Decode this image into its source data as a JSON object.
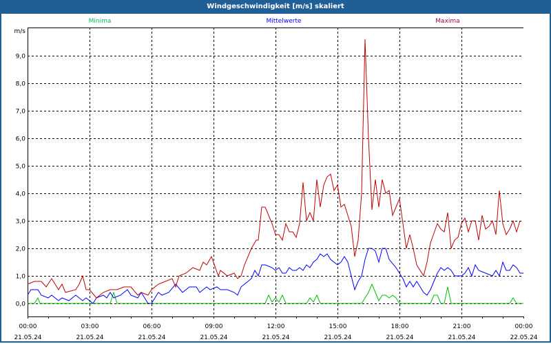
{
  "window": {
    "title": "Windgeschwindigkeit [m/s] skaliert"
  },
  "chart_data": {
    "type": "line",
    "title": "Windgeschwindigkeit [m/s] skaliert",
    "ylabel": "m/s",
    "xlabel": "",
    "x_unit": "minutes since 21.05.24 00:00",
    "xlim": [
      0,
      1440
    ],
    "ylim": [
      -0.475,
      10.025
    ],
    "grid": true,
    "legend_placement": "top",
    "y_ticks": [
      0,
      1,
      2,
      3,
      4,
      5,
      6,
      7,
      8,
      9
    ],
    "y_tick_labels": [
      "0,0",
      "1,0",
      "2,0",
      "3,0",
      "4,0",
      "5,0",
      "6,0",
      "7,0",
      "8,0",
      "9,0"
    ],
    "x_ticks": [
      0,
      180,
      360,
      540,
      720,
      900,
      1080,
      1260,
      1440
    ],
    "x_tick_labels": [
      {
        "time": "00:00",
        "date": "21.05.24"
      },
      {
        "time": "03:00",
        "date": "21.05.24"
      },
      {
        "time": "06:00",
        "date": "21.05.24"
      },
      {
        "time": "09:00",
        "date": "21.05.24"
      },
      {
        "time": "12:00",
        "date": "21.05.24"
      },
      {
        "time": "15:00",
        "date": "21.05.24"
      },
      {
        "time": "18:00",
        "date": "21.05.24"
      },
      {
        "time": "21:00",
        "date": "21.05.24"
      },
      {
        "time": "00:00",
        "date": "22.05.24"
      }
    ],
    "series": [
      {
        "name": "Minima",
        "color": "#00c000",
        "legend_color": "#00c060",
        "points": [
          [
            0,
            0
          ],
          [
            20,
            0
          ],
          [
            30,
            0.2
          ],
          [
            36,
            0
          ],
          [
            240,
            0
          ],
          [
            250,
            0.4
          ],
          [
            260,
            0
          ],
          [
            690,
            0
          ],
          [
            700,
            0.3
          ],
          [
            710,
            0.05
          ],
          [
            720,
            0.2
          ],
          [
            730,
            0.05
          ],
          [
            740,
            0.3
          ],
          [
            750,
            0
          ],
          [
            810,
            0
          ],
          [
            820,
            0.2
          ],
          [
            830,
            0.05
          ],
          [
            840,
            0.3
          ],
          [
            850,
            0
          ],
          [
            970,
            0
          ],
          [
            990,
            0.4
          ],
          [
            1000,
            0.7
          ],
          [
            1010,
            0.4
          ],
          [
            1020,
            0.1
          ],
          [
            1030,
            0.3
          ],
          [
            1040,
            0.3
          ],
          [
            1050,
            0.2
          ],
          [
            1060,
            0.3
          ],
          [
            1070,
            0.2
          ],
          [
            1080,
            0
          ],
          [
            1170,
            0
          ],
          [
            1180,
            0.3
          ],
          [
            1190,
            0.3
          ],
          [
            1200,
            0
          ],
          [
            1210,
            0
          ],
          [
            1220,
            0.6
          ],
          [
            1230,
            0
          ],
          [
            1400,
            0
          ],
          [
            1410,
            0.2
          ],
          [
            1420,
            0
          ],
          [
            1440,
            0
          ]
        ]
      },
      {
        "name": "Mittelwerte",
        "color": "#0000ff",
        "legend_color": "#0000ff",
        "points": [
          [
            0,
            0.3
          ],
          [
            10,
            0.5
          ],
          [
            30,
            0.5
          ],
          [
            40,
            0.3
          ],
          [
            60,
            0.2
          ],
          [
            70,
            0.3
          ],
          [
            90,
            0.1
          ],
          [
            100,
            0.2
          ],
          [
            120,
            0.1
          ],
          [
            130,
            0.2
          ],
          [
            140,
            0.3
          ],
          [
            150,
            0.2
          ],
          [
            160,
            0.1
          ],
          [
            170,
            0.2
          ],
          [
            180,
            0.1
          ],
          [
            190,
            0
          ],
          [
            200,
            0.2
          ],
          [
            220,
            0.3
          ],
          [
            230,
            0.2
          ],
          [
            240,
            0.4
          ],
          [
            250,
            0.2
          ],
          [
            270,
            0.3
          ],
          [
            290,
            0.5
          ],
          [
            300,
            0.3
          ],
          [
            320,
            0.2
          ],
          [
            330,
            0.4
          ],
          [
            340,
            0.2
          ],
          [
            350,
            0
          ],
          [
            360,
            0
          ],
          [
            380,
            0.4
          ],
          [
            390,
            0.3
          ],
          [
            410,
            0.4
          ],
          [
            430,
            0.7
          ],
          [
            450,
            0.4
          ],
          [
            470,
            0.6
          ],
          [
            490,
            0.6
          ],
          [
            500,
            0.4
          ],
          [
            520,
            0.6
          ],
          [
            530,
            0.5
          ],
          [
            550,
            0.6
          ],
          [
            560,
            0.5
          ],
          [
            580,
            0.5
          ],
          [
            600,
            0.4
          ],
          [
            610,
            0.3
          ],
          [
            620,
            0.6
          ],
          [
            640,
            0.8
          ],
          [
            650,
            0.9
          ],
          [
            660,
            1.2
          ],
          [
            670,
            1.0
          ],
          [
            680,
            1.4
          ],
          [
            690,
            1.4
          ],
          [
            710,
            1.3
          ],
          [
            720,
            1.2
          ],
          [
            730,
            1.3
          ],
          [
            740,
            1.1
          ],
          [
            750,
            1.1
          ],
          [
            760,
            1.3
          ],
          [
            770,
            1.2
          ],
          [
            780,
            1.2
          ],
          [
            790,
            1.3
          ],
          [
            800,
            1.2
          ],
          [
            810,
            1.4
          ],
          [
            820,
            1.3
          ],
          [
            830,
            1.5
          ],
          [
            840,
            1.6
          ],
          [
            850,
            1.8
          ],
          [
            860,
            1.7
          ],
          [
            870,
            1.8
          ],
          [
            880,
            1.6
          ],
          [
            900,
            1.4
          ],
          [
            910,
            1.5
          ],
          [
            920,
            1.7
          ],
          [
            930,
            1.5
          ],
          [
            940,
            1.0
          ],
          [
            950,
            0.5
          ],
          [
            960,
            0.8
          ],
          [
            970,
            1.0
          ],
          [
            980,
            1.6
          ],
          [
            990,
            2.0
          ],
          [
            1000,
            2.0
          ],
          [
            1010,
            1.9
          ],
          [
            1020,
            1.5
          ],
          [
            1030,
            2.0
          ],
          [
            1040,
            2.0
          ],
          [
            1050,
            1.6
          ],
          [
            1070,
            1.3
          ],
          [
            1080,
            1.1
          ],
          [
            1090,
            0.9
          ],
          [
            1100,
            0.6
          ],
          [
            1110,
            0.8
          ],
          [
            1120,
            0.6
          ],
          [
            1130,
            0.8
          ],
          [
            1140,
            0.6
          ],
          [
            1150,
            0.4
          ],
          [
            1160,
            0.3
          ],
          [
            1170,
            0.5
          ],
          [
            1180,
            0.8
          ],
          [
            1190,
            1.1
          ],
          [
            1200,
            1.3
          ],
          [
            1210,
            1.2
          ],
          [
            1220,
            1.3
          ],
          [
            1230,
            1.2
          ],
          [
            1240,
            1.0
          ],
          [
            1260,
            1.0
          ],
          [
            1270,
            1.1
          ],
          [
            1280,
            1.3
          ],
          [
            1290,
            1.0
          ],
          [
            1300,
            1.4
          ],
          [
            1310,
            1.2
          ],
          [
            1330,
            1.1
          ],
          [
            1350,
            1.0
          ],
          [
            1360,
            1.2
          ],
          [
            1370,
            1.0
          ],
          [
            1380,
            1.5
          ],
          [
            1390,
            1.2
          ],
          [
            1400,
            1.2
          ],
          [
            1410,
            1.4
          ],
          [
            1420,
            1.3
          ],
          [
            1430,
            1.1
          ],
          [
            1440,
            1.1
          ]
        ]
      },
      {
        "name": "Maxima",
        "color": "#c00000",
        "legend_color": "#a00050",
        "points": [
          [
            0,
            0.7
          ],
          [
            20,
            0.8
          ],
          [
            40,
            0.8
          ],
          [
            54,
            0.6
          ],
          [
            70,
            0.9
          ],
          [
            90,
            0.5
          ],
          [
            100,
            0.7
          ],
          [
            110,
            0.4
          ],
          [
            140,
            0.5
          ],
          [
            150,
            0.7
          ],
          [
            160,
            1.0
          ],
          [
            170,
            0.5
          ],
          [
            180,
            0.5
          ],
          [
            200,
            0.2
          ],
          [
            220,
            0.4
          ],
          [
            240,
            0.5
          ],
          [
            260,
            0.5
          ],
          [
            280,
            0.6
          ],
          [
            300,
            0.6
          ],
          [
            320,
            0.3
          ],
          [
            330,
            0.4
          ],
          [
            350,
            0.3
          ],
          [
            360,
            0.5
          ],
          [
            380,
            0.7
          ],
          [
            400,
            0.8
          ],
          [
            420,
            0.9
          ],
          [
            430,
            0.6
          ],
          [
            440,
            1.0
          ],
          [
            460,
            1.1
          ],
          [
            480,
            1.3
          ],
          [
            500,
            1.2
          ],
          [
            510,
            1.5
          ],
          [
            520,
            1.4
          ],
          [
            534,
            1.7
          ],
          [
            554,
            1.0
          ],
          [
            560,
            1.2
          ],
          [
            580,
            1.0
          ],
          [
            600,
            1.1
          ],
          [
            610,
            0.9
          ],
          [
            620,
            1.0
          ],
          [
            630,
            1.4
          ],
          [
            640,
            1.7
          ],
          [
            650,
            2.0
          ],
          [
            664,
            2.3
          ],
          [
            670,
            2.3
          ],
          [
            680,
            3.5
          ],
          [
            690,
            3.5
          ],
          [
            700,
            3.2
          ],
          [
            710,
            2.9
          ],
          [
            720,
            2.5
          ],
          [
            730,
            2.5
          ],
          [
            740,
            2.3
          ],
          [
            750,
            2.9
          ],
          [
            760,
            2.6
          ],
          [
            770,
            2.6
          ],
          [
            780,
            2.4
          ],
          [
            790,
            2.9
          ],
          [
            800,
            4.4
          ],
          [
            810,
            3.0
          ],
          [
            820,
            3.3
          ],
          [
            830,
            3.0
          ],
          [
            840,
            4.5
          ],
          [
            850,
            3.5
          ],
          [
            860,
            4.3
          ],
          [
            870,
            4.6
          ],
          [
            880,
            4.7
          ],
          [
            890,
            4.1
          ],
          [
            900,
            4.3
          ],
          [
            910,
            3.5
          ],
          [
            920,
            3.6
          ],
          [
            930,
            3.2
          ],
          [
            940,
            2.8
          ],
          [
            950,
            1.7
          ],
          [
            960,
            2.3
          ],
          [
            970,
            4.0
          ],
          [
            980,
            9.6
          ],
          [
            990,
            6.0
          ],
          [
            1000,
            3.4
          ],
          [
            1010,
            4.5
          ],
          [
            1020,
            3.5
          ],
          [
            1030,
            4.5
          ],
          [
            1040,
            4.0
          ],
          [
            1050,
            4.1
          ],
          [
            1060,
            3.2
          ],
          [
            1070,
            3.5
          ],
          [
            1080,
            3.8
          ],
          [
            1090,
            2.9
          ],
          [
            1100,
            2.0
          ],
          [
            1110,
            2.5
          ],
          [
            1120,
            2.0
          ],
          [
            1130,
            1.4
          ],
          [
            1150,
            1.0
          ],
          [
            1160,
            1.5
          ],
          [
            1170,
            2.2
          ],
          [
            1190,
            2.9
          ],
          [
            1200,
            2.7
          ],
          [
            1210,
            2.6
          ],
          [
            1220,
            3.3
          ],
          [
            1230,
            2.0
          ],
          [
            1240,
            2.3
          ],
          [
            1250,
            2.4
          ],
          [
            1260,
            2.9
          ],
          [
            1270,
            3.1
          ],
          [
            1280,
            2.6
          ],
          [
            1290,
            3.0
          ],
          [
            1300,
            3.0
          ],
          [
            1310,
            2.3
          ],
          [
            1320,
            3.2
          ],
          [
            1330,
            2.7
          ],
          [
            1340,
            2.8
          ],
          [
            1350,
            3.0
          ],
          [
            1360,
            2.5
          ],
          [
            1370,
            4.1
          ],
          [
            1380,
            2.9
          ],
          [
            1390,
            2.5
          ],
          [
            1400,
            2.7
          ],
          [
            1410,
            3.0
          ],
          [
            1420,
            2.6
          ],
          [
            1430,
            3.0
          ]
        ]
      }
    ]
  }
}
